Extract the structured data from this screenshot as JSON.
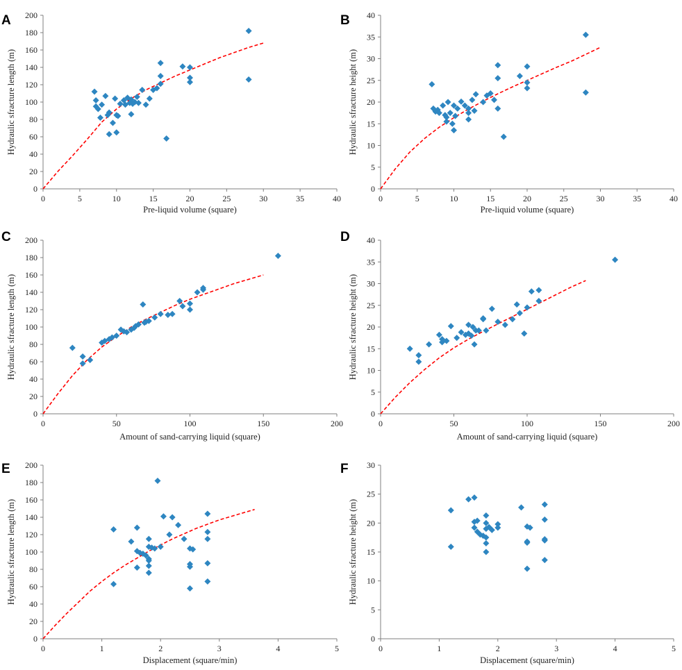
{
  "figure": {
    "marker_color": "#2e86c1",
    "trend_color": "#ff0000"
  },
  "chart_data": [
    {
      "panel": "A",
      "type": "scatter",
      "xlabel": "Pre-liquid volume (square)",
      "ylabel": "Hydraulic sfracture length (m)",
      "xlim": [
        0,
        40
      ],
      "ylim": [
        0,
        200
      ],
      "xticks": [
        0,
        5,
        10,
        15,
        20,
        25,
        30,
        35,
        40
      ],
      "yticks": [
        0,
        20,
        40,
        60,
        80,
        100,
        120,
        140,
        160,
        180,
        200
      ],
      "trend": {
        "x_end": 30,
        "points": [
          [
            0,
            0
          ],
          [
            2,
            20
          ],
          [
            4,
            38
          ],
          [
            6,
            57
          ],
          [
            8,
            77
          ],
          [
            10,
            92
          ],
          [
            12,
            104
          ],
          [
            14,
            114
          ],
          [
            16,
            122
          ],
          [
            18,
            130
          ],
          [
            20,
            137
          ],
          [
            22,
            144
          ],
          [
            24,
            151
          ],
          [
            26,
            157
          ],
          [
            28,
            163
          ],
          [
            30,
            168
          ]
        ]
      },
      "x": [
        7,
        7.2,
        7.2,
        7.5,
        7.8,
        8,
        8.5,
        8.8,
        9,
        9,
        9.5,
        9.8,
        10,
        10,
        10.2,
        10.5,
        11,
        11.2,
        11.5,
        11.8,
        12,
        12,
        12.2,
        12.5,
        12.8,
        13,
        13.5,
        14,
        14.5,
        15,
        15.5,
        16,
        16,
        16,
        16.8,
        19,
        20,
        20,
        20,
        28,
        28
      ],
      "y": [
        112,
        102,
        95,
        92,
        82,
        97,
        107,
        85,
        88,
        63,
        76,
        104,
        65,
        85,
        84,
        98,
        102,
        97,
        105,
        99,
        103,
        86,
        98,
        100,
        106,
        99,
        114,
        97,
        104,
        114,
        116,
        121,
        130,
        145,
        58,
        141,
        128,
        140,
        123,
        182,
        126
      ]
    },
    {
      "panel": "B",
      "type": "scatter",
      "xlabel": "Pre-liquid volume (square)",
      "ylabel": "Hydraulic sfracture height (m)",
      "xlim": [
        0,
        40
      ],
      "ylim": [
        0,
        40
      ],
      "xticks": [
        0,
        5,
        10,
        15,
        20,
        25,
        30,
        35,
        40
      ],
      "yticks": [
        0,
        5,
        10,
        15,
        20,
        25,
        30,
        35,
        40
      ],
      "trend": {
        "x_end": 30,
        "points": [
          [
            0,
            0
          ],
          [
            2,
            4.6
          ],
          [
            4,
            8.5
          ],
          [
            6,
            11.6
          ],
          [
            8,
            14.2
          ],
          [
            10,
            16.4
          ],
          [
            12,
            18.4
          ],
          [
            14,
            20.2
          ],
          [
            16,
            21.9
          ],
          [
            18,
            23.5
          ],
          [
            20,
            25
          ],
          [
            22,
            26.5
          ],
          [
            24,
            28
          ],
          [
            26,
            29.4
          ],
          [
            28,
            31
          ],
          [
            30,
            32.6
          ]
        ]
      },
      "x": [
        7,
        7.2,
        7.5,
        7.8,
        8,
        8.5,
        8.8,
        9,
        9,
        9.2,
        9.5,
        9.8,
        10,
        10,
        10.2,
        10.5,
        11,
        11.5,
        12,
        12,
        12,
        12.5,
        12.8,
        13,
        14,
        14.5,
        15,
        15.5,
        16,
        16,
        16,
        16.8,
        19,
        20,
        20,
        20,
        28,
        28
      ],
      "y": [
        24.1,
        18.5,
        17.8,
        18.2,
        17.5,
        19.2,
        17,
        16.5,
        15.5,
        20,
        17.5,
        15,
        13.5,
        19.2,
        16.8,
        18.5,
        20.1,
        19.2,
        17.5,
        16,
        18.5,
        20.5,
        18,
        21.8,
        20,
        21.5,
        22,
        20.5,
        25.5,
        28.5,
        18.5,
        12,
        26,
        24.5,
        28.2,
        23.2,
        35.5,
        22.2
      ]
    },
    {
      "panel": "C",
      "type": "scatter",
      "xlabel": "Amount of sand-carrying liquid (square)",
      "ylabel": "Hydraulic sfracture length (m)",
      "xlim": [
        0,
        200
      ],
      "ylim": [
        0,
        200
      ],
      "xticks": [
        0,
        50,
        100,
        150,
        200
      ],
      "yticks": [
        0,
        20,
        40,
        60,
        80,
        100,
        120,
        140,
        160,
        180,
        200
      ],
      "trend": {
        "x_end": 150,
        "points": [
          [
            0,
            0
          ],
          [
            10,
            23
          ],
          [
            20,
            44
          ],
          [
            30,
            62
          ],
          [
            40,
            77
          ],
          [
            50,
            89
          ],
          [
            60,
            100
          ],
          [
            70,
            109
          ],
          [
            80,
            117
          ],
          [
            90,
            125
          ],
          [
            100,
            132
          ],
          [
            110,
            138
          ],
          [
            120,
            144
          ],
          [
            130,
            150
          ],
          [
            140,
            155
          ],
          [
            150,
            160
          ]
        ]
      },
      "x": [
        20,
        27,
        27,
        32,
        40,
        42,
        45,
        47,
        50,
        53,
        55,
        57,
        60,
        62,
        63,
        65,
        68,
        69,
        70,
        72,
        76,
        80,
        85,
        88,
        93,
        95,
        100,
        100,
        105,
        109,
        109,
        160
      ],
      "y": [
        76,
        66,
        58,
        62,
        82,
        84,
        86,
        88,
        90,
        97,
        95,
        94,
        97,
        99,
        101,
        103,
        126,
        105,
        106,
        107,
        111,
        115,
        114,
        115,
        130,
        124,
        120,
        127,
        140,
        143,
        145,
        182
      ]
    },
    {
      "panel": "D",
      "type": "scatter",
      "xlabel": "Amount of sand-carrying liquid (square)",
      "ylabel": "Hydraulic sfracture height (m)",
      "xlim": [
        0,
        200
      ],
      "ylim": [
        0,
        40
      ],
      "xticks": [
        0,
        50,
        100,
        150,
        200
      ],
      "yticks": [
        0,
        5,
        10,
        15,
        20,
        25,
        30,
        35,
        40
      ],
      "trend": {
        "x_end": 140,
        "points": [
          [
            0,
            0
          ],
          [
            10,
            3.8
          ],
          [
            20,
            7.2
          ],
          [
            30,
            10.2
          ],
          [
            40,
            12.9
          ],
          [
            50,
            15.2
          ],
          [
            60,
            17.2
          ],
          [
            70,
            19
          ],
          [
            80,
            20.7
          ],
          [
            90,
            22.4
          ],
          [
            100,
            24.1
          ],
          [
            110,
            25.8
          ],
          [
            120,
            27.5
          ],
          [
            130,
            29.2
          ],
          [
            140,
            30.7
          ]
        ]
      },
      "x": [
        20,
        26,
        26,
        33,
        40,
        42,
        42,
        45,
        48,
        52,
        55,
        58,
        60,
        60,
        62,
        63,
        64,
        65,
        67,
        70,
        70,
        72,
        76,
        80,
        85,
        90,
        93,
        95,
        98,
        100,
        103,
        108,
        108,
        160
      ],
      "y": [
        15,
        13.5,
        12,
        16,
        18.2,
        17.2,
        16.5,
        16.8,
        20.2,
        17.5,
        18.8,
        18.2,
        20.5,
        18.5,
        18,
        20,
        16,
        19.2,
        19.2,
        21.8,
        22,
        19.2,
        24.2,
        21.2,
        20.5,
        21.8,
        25.2,
        23.2,
        18.5,
        24.5,
        28.2,
        26,
        28.5,
        35.5
      ]
    },
    {
      "panel": "E",
      "type": "scatter",
      "xlabel": "Displacement (square/min)",
      "ylabel": "Hydraulic sfracture length (m)",
      "xlim": [
        0,
        5
      ],
      "ylim": [
        0,
        200
      ],
      "xticks": [
        0,
        1,
        2,
        3,
        4,
        5
      ],
      "yticks": [
        0,
        20,
        40,
        60,
        80,
        100,
        120,
        140,
        160,
        180,
        200
      ],
      "trend": {
        "x_end": 3.6,
        "points": [
          [
            0,
            0
          ],
          [
            0.2,
            15
          ],
          [
            0.4,
            29
          ],
          [
            0.6,
            42
          ],
          [
            0.8,
            55
          ],
          [
            1,
            66
          ],
          [
            1.2,
            76
          ],
          [
            1.4,
            85
          ],
          [
            1.6,
            93
          ],
          [
            1.8,
            101
          ],
          [
            2,
            108
          ],
          [
            2.2,
            115
          ],
          [
            2.4,
            121
          ],
          [
            2.6,
            127
          ],
          [
            2.8,
            132
          ],
          [
            3,
            137
          ],
          [
            3.2,
            141
          ],
          [
            3.4,
            145
          ],
          [
            3.6,
            149
          ]
        ]
      },
      "x": [
        1.2,
        1.2,
        1.5,
        1.6,
        1.6,
        1.6,
        1.65,
        1.7,
        1.75,
        1.8,
        1.8,
        1.8,
        1.8,
        1.8,
        1.8,
        1.85,
        1.9,
        1.95,
        2,
        2.05,
        2.15,
        2.2,
        2.3,
        2.4,
        2.5,
        2.5,
        2.5,
        2.5,
        2.55,
        2.8,
        2.8,
        2.8,
        2.8,
        2.8
      ],
      "y": [
        126,
        63,
        112,
        128,
        101,
        82,
        99,
        98,
        96,
        115,
        106,
        90,
        92,
        84,
        76,
        105,
        104,
        182,
        106,
        141,
        120,
        140,
        131,
        115,
        104,
        86,
        83,
        58,
        103,
        144,
        123,
        115,
        87,
        66
      ]
    },
    {
      "panel": "F",
      "type": "scatter",
      "xlabel": "Displacement (square/min)",
      "ylabel": "Hydraulic sfracture height (m)",
      "xlim": [
        0,
        5
      ],
      "ylim": [
        0,
        30
      ],
      "xticks": [
        0,
        1,
        2,
        3,
        4,
        5
      ],
      "yticks": [
        0,
        5,
        10,
        15,
        20,
        25,
        30
      ],
      "trend": null,
      "x": [
        1.2,
        1.2,
        1.5,
        1.6,
        1.6,
        1.6,
        1.65,
        1.65,
        1.7,
        1.75,
        1.8,
        1.8,
        1.8,
        1.8,
        1.8,
        1.8,
        1.85,
        1.9,
        2,
        2,
        2.4,
        2.5,
        2.5,
        2.5,
        2.5,
        2.55,
        2.8,
        2.8,
        2.8,
        2.8,
        2.8
      ],
      "y": [
        22.2,
        15.9,
        24.1,
        24.4,
        20.2,
        19.2,
        20.4,
        18.5,
        18,
        17.8,
        21.3,
        20,
        19,
        17.5,
        16.5,
        15,
        19.3,
        18.8,
        19.8,
        19.2,
        22.7,
        19.4,
        16.8,
        16.6,
        12.1,
        19.2,
        23.2,
        20.6,
        17.2,
        17,
        13.6
      ]
    }
  ]
}
